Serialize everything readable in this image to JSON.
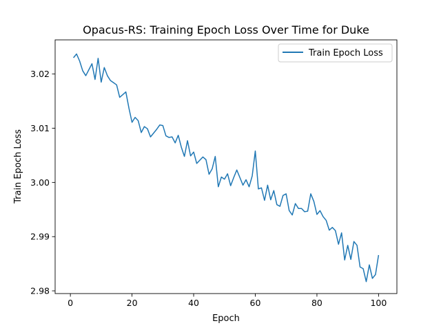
{
  "chart_data": {
    "type": "line",
    "title": "Opacus-RS: Training Epoch Loss Over Time for Duke",
    "xlabel": "Epoch",
    "ylabel": "Train Epoch Loss",
    "xlim": [
      -4.95,
      105.95
    ],
    "ylim": [
      2.9795,
      3.0263
    ],
    "xticks": [
      0,
      20,
      40,
      60,
      80,
      100
    ],
    "yticks": [
      2.98,
      2.99,
      3.0,
      3.01,
      3.02
    ],
    "ytick_labels": [
      "2.98",
      "2.99",
      "3.00",
      "3.01",
      "3.02"
    ],
    "grid": false,
    "legend_position": "top-right",
    "series": [
      {
        "name": "Train Epoch Loss",
        "color": "#1f77b4",
        "x": [
          1,
          2,
          3,
          4,
          5,
          6,
          7,
          8,
          9,
          10,
          11,
          12,
          13,
          14,
          15,
          16,
          17,
          18,
          19,
          20,
          21,
          22,
          23,
          24,
          25,
          26,
          27,
          28,
          29,
          30,
          31,
          32,
          33,
          34,
          35,
          36,
          37,
          38,
          39,
          40,
          41,
          42,
          43,
          44,
          45,
          46,
          47,
          48,
          49,
          50,
          51,
          52,
          53,
          54,
          55,
          56,
          57,
          58,
          59,
          60,
          61,
          62,
          63,
          64,
          65,
          66,
          67,
          68,
          69,
          70,
          71,
          72,
          73,
          74,
          75,
          76,
          77,
          78,
          79,
          80,
          81,
          82,
          83,
          84,
          85,
          86,
          87,
          88,
          89,
          90,
          91,
          92,
          93,
          94,
          95,
          96,
          97,
          98,
          99,
          100
        ],
        "y": [
          3.023,
          3.0237,
          3.0224,
          3.0206,
          3.0197,
          3.0208,
          3.0219,
          3.019,
          3.0229,
          3.0185,
          3.0212,
          3.0197,
          3.0188,
          3.0184,
          3.018,
          3.0157,
          3.0162,
          3.0167,
          3.0137,
          3.0111,
          3.012,
          3.0114,
          3.0092,
          3.0103,
          3.0099,
          3.0084,
          3.0091,
          3.0098,
          3.0106,
          3.0105,
          3.0086,
          3.0083,
          3.0084,
          3.0073,
          3.0087,
          3.0065,
          3.0048,
          3.0077,
          3.0049,
          3.0056,
          3.0035,
          3.0041,
          3.0047,
          3.0042,
          3.0015,
          3.0025,
          3.0048,
          2.9992,
          3.001,
          3.0006,
          3.0016,
          2.9994,
          3.0009,
          3.0023,
          3.0009,
          2.9995,
          3.0005,
          2.9992,
          3.0012,
          3.0058,
          2.9988,
          2.999,
          2.9967,
          2.9995,
          2.9968,
          2.9985,
          2.9959,
          2.9956,
          2.9976,
          2.9979,
          2.9948,
          2.994,
          2.9961,
          2.9952,
          2.9952,
          2.9946,
          2.9947,
          2.9979,
          2.9965,
          2.9941,
          2.9948,
          2.9937,
          2.993,
          2.9912,
          2.9917,
          2.9911,
          2.9886,
          2.9907,
          2.9857,
          2.9884,
          2.9858,
          2.9891,
          2.9884,
          2.9844,
          2.9841,
          2.9817,
          2.9848,
          2.9823,
          2.983,
          2.9866
        ]
      }
    ]
  }
}
